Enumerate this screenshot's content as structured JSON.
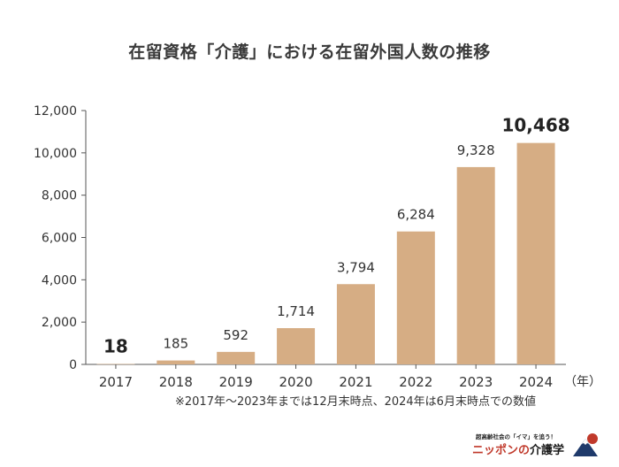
{
  "title": "在留資格「介護」における在留外国人数の推移",
  "note": "※2017年〜2023年までは12月末時点、2024年は6月末時点での数値",
  "logo": {
    "tagline": "超高齢社会の「イマ」を追う！",
    "brand_prefix": "ニッポンの",
    "brand_suffix": "介護学"
  },
  "chart_data": {
    "type": "bar",
    "categories": [
      "2017",
      "2018",
      "2019",
      "2020",
      "2021",
      "2022",
      "2023",
      "2024"
    ],
    "values": [
      18,
      185,
      592,
      1714,
      3794,
      6284,
      9328,
      10468
    ],
    "value_labels": [
      "18",
      "185",
      "592",
      "1,714",
      "3,794",
      "6,284",
      "9,328",
      "10,468"
    ],
    "emphasized_labels": [
      "2017",
      "2024"
    ],
    "x_unit_label": "（年）",
    "ylim": [
      0,
      12000
    ],
    "yticks": [
      0,
      2000,
      4000,
      6000,
      8000,
      10000,
      12000
    ],
    "ytick_labels": [
      "0",
      "2,000",
      "4,000",
      "6,000",
      "8,000",
      "10,000",
      "12,000"
    ],
    "grid": false,
    "bar_color": "#d6ad84",
    "axis_color": "#555555"
  }
}
